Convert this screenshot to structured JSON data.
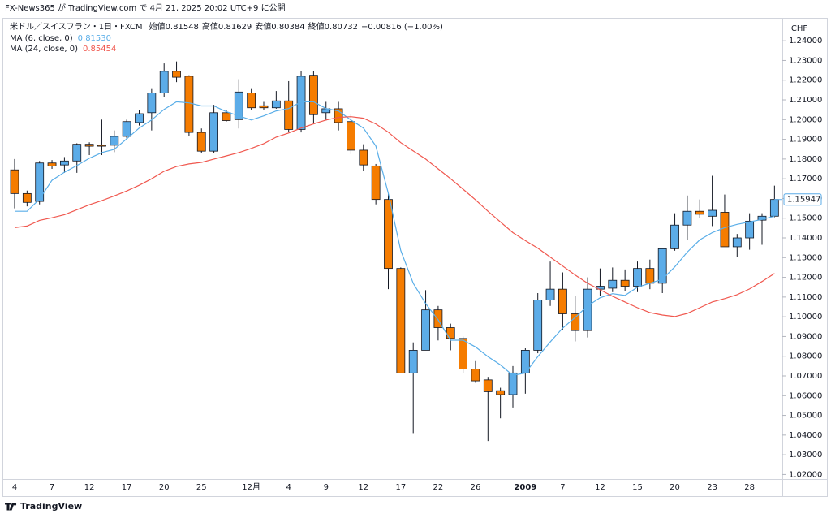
{
  "chart_data": {
    "type": "candlestick",
    "publisher": "FX-News365 が TradingView.com で 4月 21, 2025 20:02 UTC+9 に公開",
    "symbol": "米ドル／スイスフラン・1日・FXCM",
    "ohlc_legend": [
      {
        "label": "始値",
        "value": "0.81548"
      },
      {
        "label": "高値",
        "value": "0.81629"
      },
      {
        "label": "安値",
        "value": "0.80384"
      },
      {
        "label": "終値",
        "value": "0.80732"
      }
    ],
    "change": "−0.00816 (−1.00%)",
    "currency": "CHF",
    "brand": "TradingView",
    "up_color": "#5cace8",
    "down_color": "#f57c00",
    "categories": [
      "4",
      null,
      null,
      "7",
      null,
      null,
      "12",
      null,
      null,
      "17",
      null,
      null,
      "20",
      null,
      null,
      "25",
      null,
      null,
      null,
      "12月",
      null,
      null,
      "4",
      null,
      null,
      "9",
      null,
      null,
      "12",
      null,
      null,
      "17",
      null,
      null,
      "22",
      null,
      null,
      "26",
      null,
      null,
      null,
      "2009",
      null,
      null,
      "7",
      null,
      null,
      "12",
      null,
      null,
      "15",
      null,
      null,
      "20",
      null,
      null,
      "23",
      null,
      null,
      "28",
      null,
      null
    ],
    "open": [
      1.1745,
      1.1625,
      1.1585,
      1.178,
      1.177,
      1.179,
      1.1875,
      1.187,
      1.187,
      1.1915,
      1.1985,
      1.2035,
      1.2135,
      1.2245,
      1.222,
      1.1935,
      1.184,
      1.2035,
      1.2,
      1.2135,
      1.207,
      1.206,
      1.2095,
      1.195,
      1.2225,
      1.2035,
      1.2055,
      1.199,
      1.1845,
      1.1765,
      1.1595,
      1.1245,
      1.0715,
      1.083,
      1.1035,
      1.0945,
      1.089,
      1.0735,
      1.068,
      1.0625,
      1.0605,
      1.0715,
      1.083,
      1.1085,
      1.114,
      1.1015,
      1.093,
      1.114,
      1.1145,
      1.1185,
      1.1155,
      1.1245,
      1.117,
      1.1345,
      1.1465,
      1.1535,
      1.151,
      1.153,
      1.1355,
      1.14,
      1.149,
      1.151
    ],
    "high": [
      1.18,
      1.164,
      1.179,
      1.1795,
      1.181,
      1.188,
      1.1885,
      1.2,
      1.1945,
      1.2,
      1.205,
      1.2155,
      1.2285,
      1.2295,
      1.2225,
      1.1955,
      1.2075,
      1.205,
      1.2205,
      1.2155,
      1.209,
      1.2145,
      1.2195,
      1.2245,
      1.2245,
      1.209,
      1.209,
      1.203,
      1.1875,
      1.1775,
      1.1625,
      1.125,
      1.087,
      1.1135,
      1.1055,
      1.0965,
      1.09,
      1.0775,
      1.0695,
      1.064,
      1.075,
      1.084,
      1.112,
      1.128,
      1.1225,
      1.1105,
      1.12,
      1.1245,
      1.125,
      1.124,
      1.128,
      1.129,
      1.1345,
      1.1525,
      1.1615,
      1.1595,
      1.1715,
      1.162,
      1.142,
      1.1525,
      1.1525,
      1.1665
    ],
    "low": [
      1.155,
      1.156,
      1.157,
      1.175,
      1.173,
      1.173,
      1.182,
      1.182,
      1.1835,
      1.1905,
      1.197,
      1.1945,
      1.2115,
      1.219,
      1.1915,
      1.183,
      1.183,
      1.199,
      1.1955,
      1.205,
      1.205,
      1.2055,
      1.1935,
      1.1935,
      1.198,
      1.1995,
      1.1945,
      1.1825,
      1.174,
      1.157,
      1.114,
      1.0715,
      1.041,
      1.083,
      1.088,
      1.083,
      1.0715,
      1.0665,
      1.037,
      1.0485,
      1.054,
      1.061,
      1.0815,
      1.1055,
      1.0935,
      1.0875,
      1.0895,
      1.1105,
      1.1125,
      1.113,
      1.1125,
      1.114,
      1.112,
      1.1335,
      1.139,
      1.15,
      1.146,
      1.1355,
      1.1305,
      1.134,
      1.1365,
      1.1505
    ],
    "close": [
      1.1625,
      1.158,
      1.178,
      1.1765,
      1.179,
      1.1875,
      1.1865,
      1.1865,
      1.1915,
      1.199,
      1.203,
      1.2135,
      1.2245,
      1.2215,
      1.1935,
      1.184,
      1.2035,
      1.1995,
      1.214,
      1.206,
      1.206,
      1.2095,
      1.195,
      1.222,
      1.2025,
      1.2055,
      1.1985,
      1.1845,
      1.177,
      1.1595,
      1.1245,
      1.0715,
      1.083,
      1.1035,
      1.0945,
      1.089,
      1.0735,
      1.0675,
      1.062,
      1.0605,
      1.0715,
      1.083,
      1.1085,
      1.114,
      1.1015,
      1.093,
      1.114,
      1.1155,
      1.1185,
      1.1155,
      1.1245,
      1.117,
      1.1345,
      1.1465,
      1.1535,
      1.152,
      1.154,
      1.1355,
      1.14,
      1.1485,
      1.151,
      1.1595
    ],
    "series": [
      {
        "name": "MA (6, close, 0)",
        "legend_value": "0.81530",
        "color": "#5aaee8",
        "values": [
          1.1535,
          1.1535,
          1.1597,
          1.1692,
          1.1733,
          1.1767,
          1.1804,
          1.1833,
          1.1849,
          1.1903,
          1.1957,
          1.1998,
          1.2052,
          1.209,
          1.2085,
          1.2069,
          1.2069,
          1.204,
          1.2019,
          1.1998,
          1.2019,
          1.2044,
          1.2056,
          1.209,
          1.209,
          1.2056,
          1.2044,
          1.1998,
          1.1957,
          1.1866,
          1.1626,
          1.1336,
          1.117,
          1.1067,
          1.0984,
          1.0881,
          1.0881,
          1.0847,
          1.0798,
          1.0756,
          1.0703,
          1.0715,
          1.0798,
          1.0872,
          1.0943,
          1.0997,
          1.1055,
          1.1096,
          1.1117,
          1.1108,
          1.115,
          1.117,
          1.1191,
          1.1253,
          1.1328,
          1.139,
          1.1427,
          1.1452,
          1.1469,
          1.1481,
          1.1494,
          1.151
        ]
      },
      {
        "name": "MA (24, close, 0)",
        "legend_value": "0.85454",
        "color": "#f0584f",
        "values": [
          1.1452,
          1.146,
          1.1489,
          1.1502,
          1.1518,
          1.1543,
          1.1568,
          1.1589,
          1.1613,
          1.1638,
          1.1667,
          1.17,
          1.1738,
          1.1762,
          1.1775,
          1.1783,
          1.18,
          1.1816,
          1.1833,
          1.1854,
          1.1878,
          1.1911,
          1.1932,
          1.1957,
          1.1978,
          1.1998,
          1.2011,
          1.2015,
          1.2007,
          1.1978,
          1.1936,
          1.1883,
          1.1841,
          1.18,
          1.175,
          1.17,
          1.1647,
          1.1593,
          1.1535,
          1.1481,
          1.1427,
          1.1386,
          1.1348,
          1.1303,
          1.1257,
          1.1212,
          1.117,
          1.1137,
          1.1104,
          1.1075,
          1.1046,
          1.1021,
          1.1009,
          1.1001,
          1.1017,
          1.1046,
          1.1075,
          1.1092,
          1.1112,
          1.1141,
          1.1179,
          1.122
        ]
      }
    ],
    "last_price": {
      "value": 1.15947,
      "label": "1.15947"
    },
    "ylim": [
      1.0177,
      1.2516
    ],
    "yticks": [
      {
        "value": 1.02,
        "label": "1.02000"
      },
      {
        "value": 1.03,
        "label": "1.03000"
      },
      {
        "value": 1.04,
        "label": "1.04000"
      },
      {
        "value": 1.05,
        "label": "1.05000"
      },
      {
        "value": 1.06,
        "label": "1.06000"
      },
      {
        "value": 1.07,
        "label": "1.07000"
      },
      {
        "value": 1.08,
        "label": "1.08000"
      },
      {
        "value": 1.09,
        "label": "1.09000"
      },
      {
        "value": 1.1,
        "label": "1.10000"
      },
      {
        "value": 1.11,
        "label": "1.11000"
      },
      {
        "value": 1.12,
        "label": "1.12000"
      },
      {
        "value": 1.13,
        "label": "1.13000"
      },
      {
        "value": 1.14,
        "label": "1.14000"
      },
      {
        "value": 1.15,
        "label": "1.15000"
      },
      {
        "value": 1.16,
        "label": "1.16000"
      },
      {
        "value": 1.17,
        "label": "1.17000"
      },
      {
        "value": 1.18,
        "label": "1.18000"
      },
      {
        "value": 1.19,
        "label": "1.19000"
      },
      {
        "value": 1.2,
        "label": "1.20000"
      },
      {
        "value": 1.21,
        "label": "1.21000"
      },
      {
        "value": 1.22,
        "label": "1.22000"
      },
      {
        "value": 1.23,
        "label": "1.23000"
      },
      {
        "value": 1.24,
        "label": "1.24000"
      }
    ]
  }
}
